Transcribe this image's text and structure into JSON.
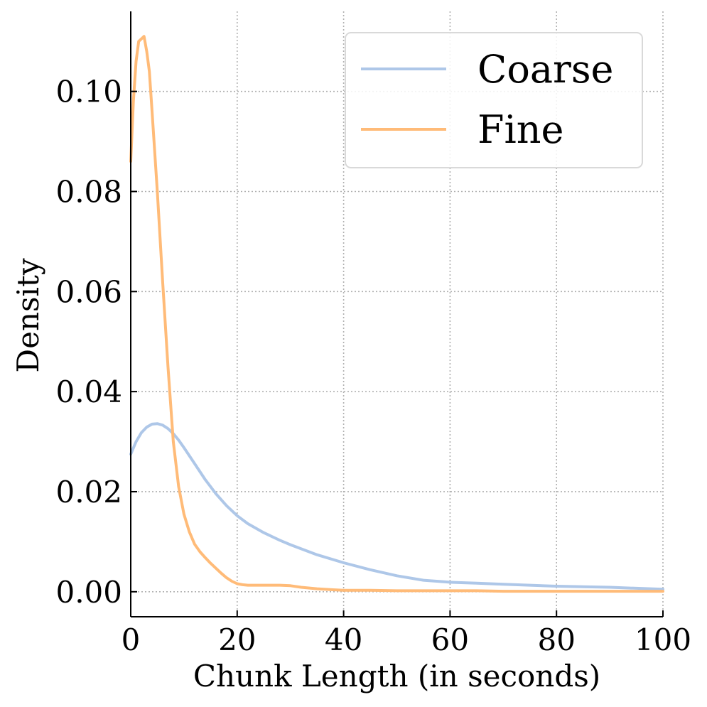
{
  "chart_data": {
    "type": "line",
    "title": "",
    "xlabel": "Chunk Length (in seconds)",
    "ylabel": "Density",
    "xlim": [
      0,
      100
    ],
    "ylim": [
      -0.005,
      0.116
    ],
    "xticks": [
      0,
      20,
      40,
      60,
      80,
      100
    ],
    "xtick_labels": [
      "0",
      "20",
      "40",
      "60",
      "80",
      "100"
    ],
    "yticks": [
      0.0,
      0.02,
      0.04,
      0.06,
      0.08,
      0.1
    ],
    "ytick_labels": [
      "0.00",
      "0.02",
      "0.04",
      "0.06",
      "0.08",
      "0.10"
    ],
    "grid": true,
    "legend_position": "top-right",
    "series": [
      {
        "name": "Coarse",
        "color": "#aec7e8",
        "x": [
          0,
          1,
          2,
          3,
          4,
          5,
          6,
          7,
          8,
          9,
          10,
          12,
          14,
          16,
          18,
          20,
          22,
          25,
          28,
          30,
          35,
          40,
          45,
          50,
          55,
          60,
          65,
          70,
          75,
          80,
          85,
          90,
          95,
          100
        ],
        "y": [
          0.0275,
          0.03,
          0.0318,
          0.0329,
          0.0335,
          0.0336,
          0.0333,
          0.0326,
          0.0316,
          0.0303,
          0.0288,
          0.0256,
          0.0224,
          0.0196,
          0.0172,
          0.0152,
          0.0136,
          0.0118,
          0.0103,
          0.0094,
          0.0074,
          0.0058,
          0.0044,
          0.0032,
          0.0023,
          0.0019,
          0.0017,
          0.0015,
          0.0013,
          0.0011,
          0.001,
          0.0009,
          0.0007,
          0.0005
        ]
      },
      {
        "name": "Fine",
        "color": "#ffbb78",
        "x": [
          0,
          0.5,
          1,
          1.5,
          2,
          2.5,
          3,
          3.5,
          4,
          5,
          6,
          7,
          8,
          9,
          10,
          11,
          12,
          13,
          14,
          15,
          16,
          17,
          18,
          19,
          20,
          21,
          22,
          24,
          26,
          28,
          30,
          32,
          35,
          38,
          40,
          45,
          50,
          55,
          60,
          65,
          70,
          75,
          80,
          85,
          90,
          95,
          100
        ],
        "y": [
          0.086,
          0.098,
          0.106,
          0.11,
          0.1105,
          0.111,
          0.108,
          0.104,
          0.096,
          0.08,
          0.062,
          0.045,
          0.03,
          0.021,
          0.0155,
          0.012,
          0.0095,
          0.008,
          0.0068,
          0.0057,
          0.0047,
          0.0037,
          0.0028,
          0.0021,
          0.0016,
          0.0014,
          0.0013,
          0.0013,
          0.0013,
          0.0013,
          0.0012,
          0.0009,
          0.0006,
          0.0004,
          0.0003,
          0.0003,
          0.0002,
          0.0002,
          0.0002,
          0.0002,
          0.0001,
          0.0001,
          0.0001,
          0.0001,
          0.0001,
          0.0001,
          0.0001
        ]
      }
    ]
  }
}
